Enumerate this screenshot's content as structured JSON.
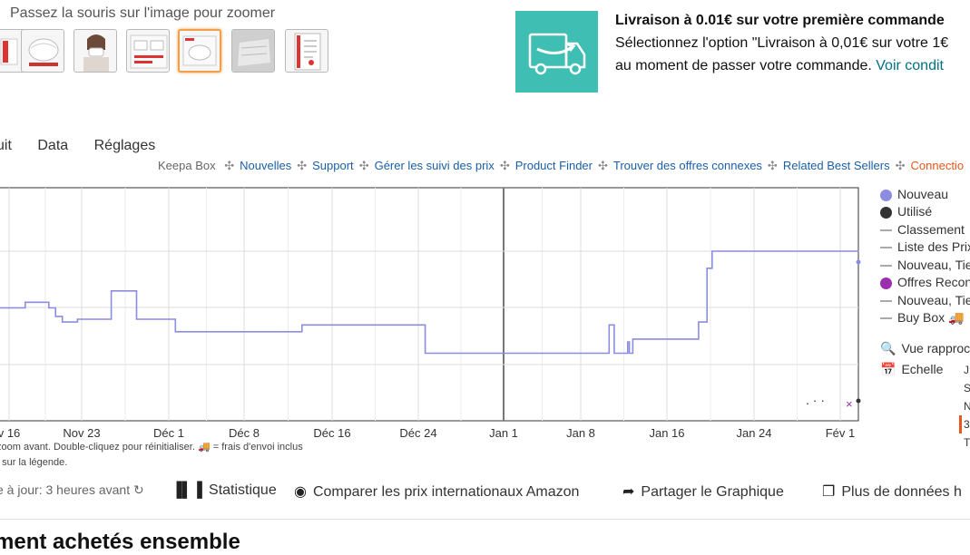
{
  "gallery": {
    "hint": "Passez la souris sur l'image pour zoomer",
    "thumb_count": 7,
    "selected_index": 4
  },
  "delivery": {
    "title": "Livraison à 0.01€ sur votre première commande",
    "line1": "Sélectionnez l'option \"Livraison à 0,01€ sur votre 1€",
    "line2": "au moment de passer votre commande.",
    "link": "Voir condit",
    "icon": "delivery-truck-icon",
    "accent_color": "#3fbfb4"
  },
  "tabs": [
    "uit",
    "Data",
    "Réglages"
  ],
  "links": {
    "keepa_box": "Keepa Box",
    "items": [
      "Nouvelles",
      "Support",
      "Gérer les suivi des prix",
      "Product Finder",
      "Trouver des offres connexes",
      "Related Best Sellers"
    ],
    "connection": "Connectio"
  },
  "chart_data": {
    "type": "line",
    "x_labels": [
      "v 16",
      "Nov 23",
      "Déc 1",
      "Déc 8",
      "Déc 16",
      "Déc 24",
      "Jan 1",
      "Jan 8",
      "Jan 16",
      "Jan 24",
      "Fév 1"
    ],
    "series": [
      {
        "name": "Nouveau",
        "color": "#8c8ce0",
        "points": [
          [
            -2,
            2.0
          ],
          [
            1,
            2.0
          ],
          [
            1.6,
            2.0
          ],
          [
            1.6,
            1.9
          ],
          [
            3.0,
            1.9
          ],
          [
            3.0,
            2.0
          ],
          [
            3.4,
            2.0
          ],
          [
            3.4,
            2.15
          ],
          [
            3.8,
            2.15
          ],
          [
            3.8,
            2.25
          ],
          [
            4.7,
            2.25
          ],
          [
            4.7,
            2.2
          ],
          [
            6.7,
            2.2
          ],
          [
            6.7,
            1.7
          ],
          [
            8.2,
            1.7
          ],
          [
            8.2,
            2.2
          ],
          [
            10.5,
            2.2
          ],
          [
            10.5,
            2.42
          ],
          [
            18.0,
            2.42
          ],
          [
            18.0,
            2.3
          ],
          [
            25.3,
            2.3
          ],
          [
            25.3,
            2.8
          ],
          [
            36.2,
            2.8
          ],
          [
            36.2,
            2.3
          ],
          [
            36.5,
            2.3
          ],
          [
            36.5,
            2.8
          ],
          [
            37.3,
            2.8
          ],
          [
            37.3,
            2.6
          ],
          [
            37.4,
            2.6
          ],
          [
            37.4,
            2.8
          ],
          [
            37.6,
            2.8
          ],
          [
            37.6,
            2.55
          ],
          [
            41.5,
            2.55
          ],
          [
            41.5,
            2.25
          ],
          [
            42.0,
            2.25
          ],
          [
            42.0,
            1.3
          ],
          [
            42.3,
            1.3
          ],
          [
            42.3,
            1.0
          ],
          [
            51.0,
            1.0
          ]
        ]
      }
    ],
    "legend": [
      "Nouveau",
      "Utilisé",
      "Classement",
      "Liste des Prix",
      "Nouveau, Tie",
      "Offres Recon",
      "Nouveau, Tie",
      "Buy Box"
    ],
    "extras": {
      "zoom": "Vue rapproc",
      "scale": "Echelle",
      "scale_values": [
        "J",
        "S",
        "N",
        "3",
        "T"
      ]
    }
  },
  "help": {
    "line1": "zoom avant. Double-cliquez pour réinitialiser.",
    "line1b": "= frais d'envoi inclus",
    "line2": "t sur la légende."
  },
  "toolbar": {
    "updated": "e à jour: 3 heures avant",
    "statistics": "Statistique",
    "compare": "Comparer les prix internationaux Amazon",
    "share": "Partager le Graphique",
    "more": "Plus de données h"
  },
  "bottom": {
    "title": "ment achetés ensemble"
  }
}
